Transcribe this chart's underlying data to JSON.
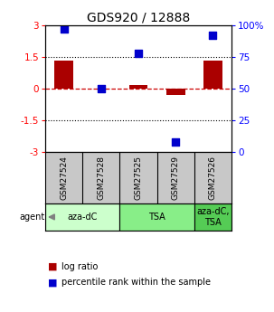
{
  "title": "GDS920 / 12888",
  "samples": [
    "GSM27524",
    "GSM27528",
    "GSM27525",
    "GSM27529",
    "GSM27526"
  ],
  "log_ratios": [
    1.3,
    0.0,
    0.15,
    -0.3,
    1.3
  ],
  "percentile_ranks": [
    97,
    50,
    78,
    8,
    92
  ],
  "agents": [
    {
      "label": "aza-dC",
      "start": 0,
      "end": 2,
      "color": "#ccffcc"
    },
    {
      "label": "TSA",
      "start": 2,
      "end": 4,
      "color": "#88ee88"
    },
    {
      "label": "aza-dC,\nTSA",
      "start": 4,
      "end": 5,
      "color": "#55cc55"
    }
  ],
  "ylim_left": [
    -3,
    3
  ],
  "ylim_right": [
    0,
    100
  ],
  "yticks_left": [
    -3,
    -1.5,
    0,
    1.5,
    3
  ],
  "yticks_right": [
    0,
    25,
    50,
    75,
    100
  ],
  "ytick_labels_left": [
    "-3",
    "-1.5",
    "0",
    "1.5",
    "3"
  ],
  "ytick_labels_right": [
    "0",
    "25",
    "50",
    "75",
    "100%"
  ],
  "bar_color": "#aa0000",
  "dot_color": "#0000cc",
  "hline_color": "#cc0000",
  "dotline_y": [
    1.5,
    -1.5
  ],
  "bar_width": 0.5,
  "dot_size": 40,
  "legend_bar_label": "log ratio",
  "legend_dot_label": "percentile rank within the sample",
  "agent_label": "agent",
  "sample_box_color": "#c8c8c8",
  "title_fontsize": 10,
  "tick_fontsize": 7.5,
  "sample_fontsize": 6.5,
  "agent_fontsize": 7,
  "legend_fontsize": 7
}
